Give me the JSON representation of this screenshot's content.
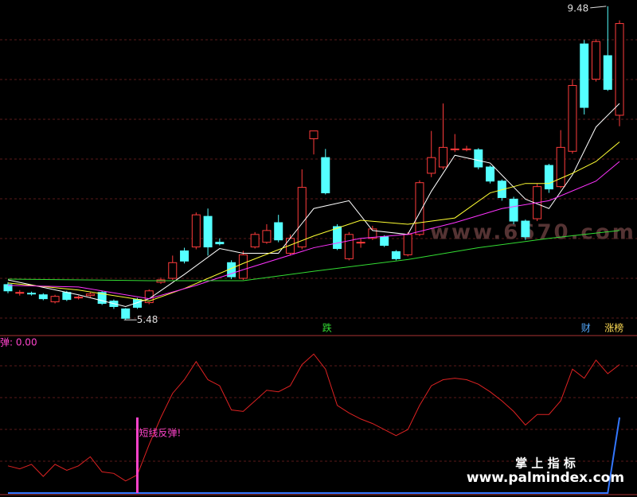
{
  "chart_data": [
    {
      "type": "candlestick",
      "open": [
        5.93,
        5.82,
        5.82,
        5.8,
        5.71,
        5.83,
        5.76,
        5.79,
        5.83,
        5.72,
        5.62,
        5.74,
        5.7,
        5.96,
        6.01,
        6.36,
        6.41,
        6.8,
        6.47,
        6.21,
        6.01,
        6.41,
        6.47,
        6.72,
        6.33,
        6.41,
        7.79,
        7.55,
        6.67,
        6.26,
        6.46,
        6.52,
        6.54,
        6.35,
        6.31,
        6.57,
        7.35,
        7.43,
        7.65,
        7.66,
        7.65,
        7.43,
        7.25,
        7.02,
        6.74,
        6.77,
        7.45,
        7.18,
        7.63,
        9.0,
        8.55,
        8.85,
        8.09
      ],
      "close": [
        5.85,
        5.83,
        5.81,
        5.75,
        5.78,
        5.74,
        5.77,
        5.81,
        5.69,
        5.65,
        5.5,
        5.64,
        5.85,
        5.99,
        6.21,
        6.23,
        6.82,
        6.41,
        6.45,
        6.03,
        6.31,
        6.57,
        6.62,
        6.5,
        6.52,
        7.17,
        7.89,
        7.1,
        6.39,
        6.57,
        6.47,
        6.64,
        6.43,
        6.26,
        6.57,
        7.23,
        7.55,
        7.68,
        7.66,
        7.66,
        7.43,
        7.25,
        7.04,
        6.74,
        6.54,
        7.18,
        7.15,
        7.68,
        8.47,
        8.19,
        9.03,
        8.42,
        9.26
      ],
      "high": [
        5.96,
        5.86,
        5.84,
        5.82,
        5.8,
        5.85,
        5.79,
        5.83,
        5.85,
        5.74,
        5.63,
        5.76,
        5.87,
        6.02,
        6.3,
        6.4,
        6.85,
        6.9,
        6.52,
        6.24,
        6.36,
        6.6,
        6.7,
        6.82,
        6.57,
        7.4,
        7.89,
        7.66,
        6.7,
        6.6,
        6.52,
        6.68,
        6.56,
        6.37,
        6.6,
        7.26,
        7.89,
        8.24,
        7.85,
        7.7,
        7.67,
        7.45,
        7.27,
        7.05,
        6.76,
        7.22,
        7.47,
        7.9,
        8.55,
        9.05,
        9.06,
        9.48,
        9.3
      ],
      "low": [
        5.82,
        5.79,
        5.79,
        5.73,
        5.69,
        5.72,
        5.74,
        5.77,
        5.67,
        5.62,
        5.48,
        5.62,
        5.68,
        5.94,
        5.99,
        6.2,
        6.38,
        6.3,
        6.43,
        6.0,
        5.99,
        6.39,
        6.45,
        6.47,
        6.3,
        6.38,
        7.59,
        7.08,
        6.37,
        6.24,
        6.4,
        6.5,
        6.41,
        6.24,
        6.29,
        6.55,
        7.3,
        7.4,
        7.62,
        7.63,
        7.4,
        7.22,
        7.0,
        6.7,
        6.5,
        6.74,
        7.1,
        7.16,
        7.6,
        8.1,
        8.52,
        8.4,
        7.95
      ],
      "up_color": "#ff3c3c",
      "down_color": "#54ffff",
      "ylim": [
        5.3,
        9.56
      ],
      "lines": [
        {
          "color": "#ffffff",
          "x": [
            0,
            6,
            10,
            12,
            15,
            18,
            20,
            23,
            26,
            29,
            31,
            34,
            36,
            38,
            41,
            44,
            46,
            48,
            50,
            52
          ],
          "values": [
            5.99,
            5.8,
            5.65,
            5.75,
            6.06,
            6.39,
            6.33,
            6.33,
            6.9,
            7.0,
            6.62,
            6.57,
            7.12,
            7.58,
            7.48,
            7.02,
            6.9,
            7.33,
            7.94,
            8.24
          ]
        },
        {
          "color": "#ffff33",
          "x": [
            0,
            6,
            12,
            15,
            20,
            26,
            30,
            34,
            38,
            41,
            44,
            46,
            48,
            50,
            52
          ],
          "values": [
            5.95,
            5.86,
            5.72,
            5.88,
            6.2,
            6.55,
            6.75,
            6.7,
            6.78,
            7.1,
            7.22,
            7.22,
            7.35,
            7.5,
            7.75
          ]
        },
        {
          "color": "#ff33ff",
          "x": [
            0,
            6,
            12,
            16,
            20,
            26,
            30,
            34,
            38,
            42,
            46,
            50,
            52
          ],
          "values": [
            5.92,
            5.9,
            5.75,
            5.92,
            6.12,
            6.4,
            6.52,
            6.57,
            6.72,
            6.9,
            7.0,
            7.25,
            7.5
          ]
        },
        {
          "color": "#33dd33",
          "x": [
            0,
            12,
            20,
            26,
            34,
            40,
            46,
            52
          ],
          "values": [
            6.0,
            5.98,
            5.98,
            6.1,
            6.25,
            6.4,
            6.52,
            6.62
          ]
        }
      ],
      "annotations": [
        {
          "text": "9.48",
          "x": 51,
          "value": 9.48
        },
        {
          "text": "5.48",
          "x": 10,
          "value": 5.48
        }
      ],
      "signals": [
        {
          "text": "跌",
          "x": 27,
          "color": "#33dd33"
        },
        {
          "text": "财",
          "x": 49,
          "color": "#54aaff"
        },
        {
          "text": "涨榜",
          "x": 51,
          "color": "#ffdd55"
        }
      ],
      "watermark": "www.6670.com"
    },
    {
      "type": "line",
      "title": "弹: 0.00",
      "ylim": [
        0,
        100
      ],
      "series": [
        {
          "color": "#dd2222",
          "values": [
            18,
            16,
            19,
            11,
            19,
            15,
            18,
            24,
            14,
            13,
            8,
            12,
            32,
            50,
            66,
            75,
            87,
            75,
            71,
            55,
            54,
            61,
            68,
            67,
            71,
            85,
            92,
            82,
            58,
            53,
            49,
            46,
            42,
            38,
            42,
            58,
            71,
            75,
            76,
            75,
            72,
            67,
            61,
            54,
            45,
            52,
            52,
            61,
            82,
            76,
            88,
            79,
            85
          ]
        },
        {
          "color": "#3377ff",
          "values": [
            0,
            0,
            0,
            0,
            0,
            0,
            0,
            0,
            0,
            0,
            0,
            0,
            0,
            0,
            0,
            0,
            0,
            0,
            0,
            0,
            0,
            0,
            0,
            0,
            0,
            0,
            0,
            0,
            0,
            0,
            0,
            0,
            0,
            0,
            0,
            0,
            0,
            0,
            0,
            0,
            0,
            0,
            0,
            0,
            0,
            0,
            0,
            0,
            0,
            0,
            0,
            0,
            50
          ]
        }
      ],
      "spike": {
        "x": 11,
        "value": 50,
        "color": "#ff44cc",
        "label": "短线反弹!"
      },
      "footer": {
        "title": "掌 上 指 标",
        "url": "www.palmindex.com"
      }
    }
  ]
}
